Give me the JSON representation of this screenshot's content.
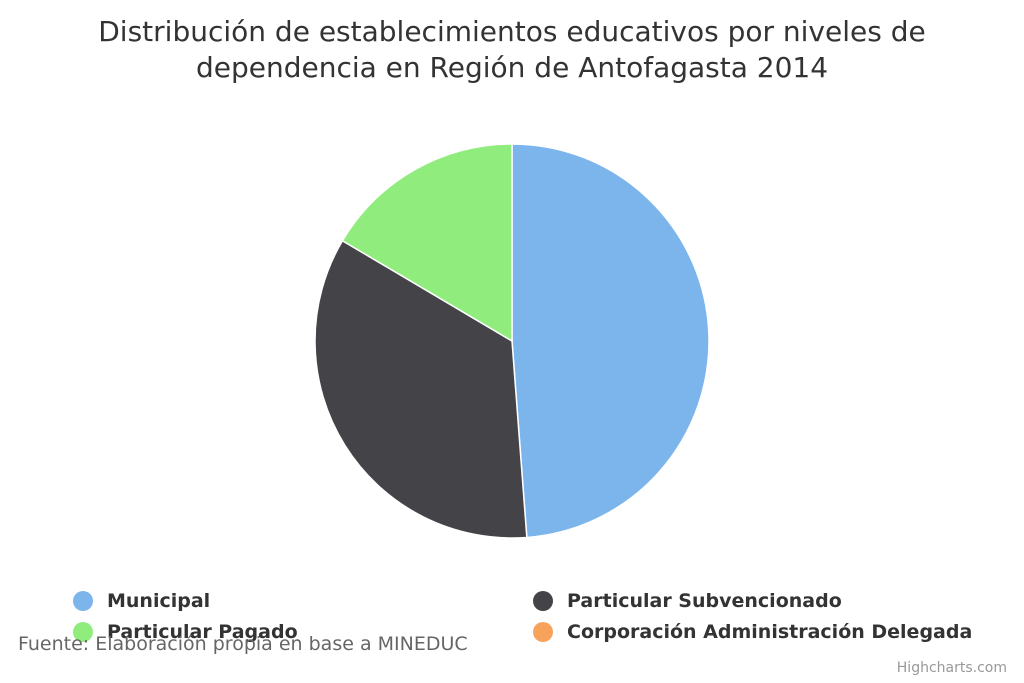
{
  "chart_data": {
    "type": "pie",
    "title": "Distribución de establecimientos educativos por niveles de dependencia en Región de Antofagasta 2014",
    "title_lines": [
      "Distribución de establecimientos educativos por niveles de",
      "dependencia en Región de Antofagasta 2014"
    ],
    "series": [
      {
        "name": "Municipal",
        "value": 48.8,
        "color": "#7cb5ec"
      },
      {
        "name": "Particular Subvencionado",
        "value": 34.7,
        "color": "#434348"
      },
      {
        "name": "Particular Pagado",
        "value": 16.5,
        "color": "#90ed7d"
      },
      {
        "name": "Corporación Administración Delegada",
        "value": 0,
        "color": "#f7a35c"
      }
    ],
    "legend_position": "bottom"
  },
  "source": "Fuente: Elaboración propia en base a MINEDUC",
  "credits": "Highcharts.com"
}
